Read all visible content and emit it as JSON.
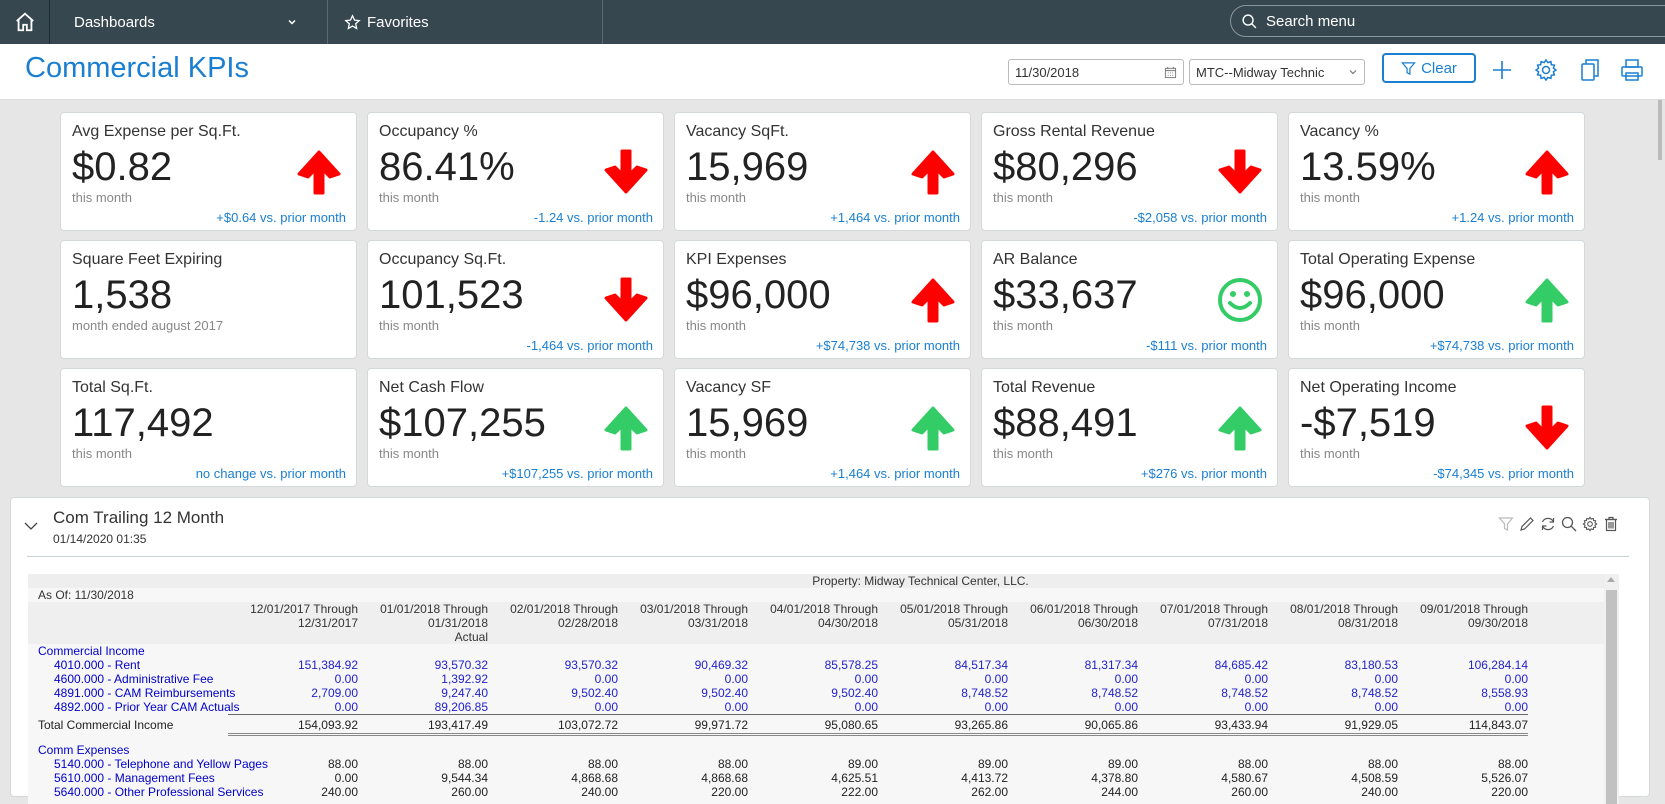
{
  "nav": {
    "dashboards_label": "Dashboards",
    "favorites_label": "Favorites",
    "search_placeholder": "Search menu"
  },
  "header": {
    "title": "Commercial KPIs",
    "date_value": "11/30/2018",
    "property_value": "MTC--Midway Technic",
    "clear_label": "Clear"
  },
  "colors": {
    "accent": "#1a7fd0",
    "nav_bg": "#37474f",
    "up_bad": "#ff0000",
    "up_good": "#33cc66"
  },
  "kpis": [
    {
      "title": "Avg Expense per Sq.Ft.",
      "value": "$0.82",
      "period": "this month",
      "delta": "+$0.64 vs. prior month",
      "icon": "arrow-up-red"
    },
    {
      "title": "Occupancy %",
      "value": "86.41%",
      "period": "this month",
      "delta": "-1.24 vs. prior month",
      "icon": "arrow-down-red"
    },
    {
      "title": "Vacancy SqFt.",
      "value": "15,969",
      "period": "this month",
      "delta": "+1,464 vs. prior month",
      "icon": "arrow-up-red"
    },
    {
      "title": "Gross Rental Revenue",
      "value": "$80,296",
      "period": "this month",
      "delta": "-$2,058 vs. prior month",
      "icon": "arrow-down-red"
    },
    {
      "title": "Vacancy %",
      "value": "13.59%",
      "period": "this month",
      "delta": "+1.24 vs. prior month",
      "icon": "arrow-up-red"
    },
    {
      "title": "Square Feet Expiring",
      "value": "1,538",
      "period": "month ended august 2017",
      "delta": "",
      "icon": "none"
    },
    {
      "title": "Occupancy Sq.Ft.",
      "value": "101,523",
      "period": "this month",
      "delta": "-1,464 vs. prior month",
      "icon": "arrow-down-red"
    },
    {
      "title": "KPI Expenses",
      "value": "$96,000",
      "period": "this month",
      "delta": "+$74,738 vs. prior month",
      "icon": "arrow-up-red"
    },
    {
      "title": "AR Balance",
      "value": "$33,637",
      "period": "this month",
      "delta": "-$111 vs. prior month",
      "icon": "smiley-green"
    },
    {
      "title": "Total Operating Expense",
      "value": "$96,000",
      "period": "this month",
      "delta": "+$74,738 vs. prior month",
      "icon": "arrow-up-green"
    },
    {
      "title": "Total Sq.Ft.",
      "value": "117,492",
      "period": "this month",
      "delta": "no change vs. prior month",
      "icon": "none"
    },
    {
      "title": "Net Cash Flow",
      "value": "$107,255",
      "period": "this month",
      "delta": "+$107,255 vs. prior month",
      "icon": "arrow-up-green"
    },
    {
      "title": "Vacancy SF",
      "value": "15,969",
      "period": "this month",
      "delta": "+1,464 vs. prior month",
      "icon": "arrow-up-green"
    },
    {
      "title": "Total Revenue",
      "value": "$88,491",
      "period": "this month",
      "delta": "+$276 vs. prior month",
      "icon": "arrow-up-green"
    },
    {
      "title": "Net Operating Income",
      "value": "-$7,519",
      "period": "this month",
      "delta": "-$74,345 vs. prior month",
      "icon": "arrow-down-red"
    }
  ],
  "panel": {
    "title": "Com Trailing 12 Month",
    "timestamp": "01/14/2020 01:35",
    "tools": [
      "filter-icon",
      "pencil-icon",
      "refresh-icon",
      "search-icon",
      "gear-icon",
      "trash-icon"
    ]
  },
  "report": {
    "property": "Property: Midway Technical Center, LLC.",
    "as_of": "As Of: 11/30/2018",
    "columns": [
      {
        "line1": "12/01/2017 Through",
        "line2": "12/31/2017",
        "line3": ""
      },
      {
        "line1": "01/01/2018 Through",
        "line2": "01/31/2018",
        "line3": "Actual"
      },
      {
        "line1": "02/01/2018 Through",
        "line2": "02/28/2018",
        "line3": ""
      },
      {
        "line1": "03/01/2018 Through",
        "line2": "03/31/2018",
        "line3": ""
      },
      {
        "line1": "04/01/2018 Through",
        "line2": "04/30/2018",
        "line3": ""
      },
      {
        "line1": "05/01/2018 Through",
        "line2": "05/31/2018",
        "line3": ""
      },
      {
        "line1": "06/01/2018 Through",
        "line2": "06/30/2018",
        "line3": ""
      },
      {
        "line1": "07/01/2018 Through",
        "line2": "07/31/2018",
        "line3": ""
      },
      {
        "line1": "08/01/2018 Through",
        "line2": "08/31/2018",
        "line3": ""
      },
      {
        "line1": "09/01/2018 Through",
        "line2": "09/30/2018",
        "line3": ""
      }
    ],
    "income_header": "Commercial Income",
    "income_rows": [
      {
        "label": "4010.000 - Rent",
        "values": [
          "151,384.92",
          "93,570.32",
          "93,570.32",
          "90,469.32",
          "85,578.25",
          "84,517.34",
          "81,317.34",
          "84,685.42",
          "83,180.53",
          "106,284.14"
        ]
      },
      {
        "label": "4600.000 - Administrative Fee",
        "values": [
          "0.00",
          "1,392.92",
          "0.00",
          "0.00",
          "0.00",
          "0.00",
          "0.00",
          "0.00",
          "0.00",
          "0.00"
        ]
      },
      {
        "label": "4891.000 - CAM Reimbursements",
        "values": [
          "2,709.00",
          "9,247.40",
          "9,502.40",
          "9,502.40",
          "9,502.40",
          "8,748.52",
          "8,748.52",
          "8,748.52",
          "8,748.52",
          "8,558.93"
        ]
      },
      {
        "label": "4892.000 - Prior Year CAM Actuals",
        "values": [
          "0.00",
          "89,206.85",
          "0.00",
          "0.00",
          "0.00",
          "0.00",
          "0.00",
          "0.00",
          "0.00",
          "0.00"
        ]
      }
    ],
    "income_total": {
      "label": "Total Commercial Income",
      "values": [
        "154,093.92",
        "193,417.49",
        "103,072.72",
        "99,971.72",
        "95,080.65",
        "93,265.86",
        "90,065.86",
        "93,433.94",
        "91,929.05",
        "114,843.07"
      ]
    },
    "expense_header": "Comm Expenses",
    "expense_rows": [
      {
        "label": "5140.000 - Telephone and Yellow Pages",
        "values": [
          "88.00",
          "88.00",
          "88.00",
          "88.00",
          "89.00",
          "89.00",
          "89.00",
          "88.00",
          "88.00",
          "88.00"
        ]
      },
      {
        "label": "5610.000 - Management Fees",
        "values": [
          "0.00",
          "9,544.34",
          "4,868.68",
          "4,868.68",
          "4,625.51",
          "4,413.72",
          "4,378.80",
          "4,580.67",
          "4,508.59",
          "5,526.07"
        ]
      },
      {
        "label": "5640.000 - Other Professional Services",
        "values": [
          "240.00",
          "260.00",
          "240.00",
          "220.00",
          "222.00",
          "262.00",
          "244.00",
          "260.00",
          "240.00",
          "220.00"
        ]
      }
    ]
  }
}
